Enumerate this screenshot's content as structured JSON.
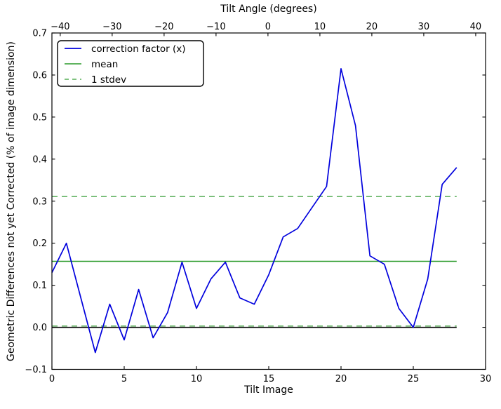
{
  "colors": {
    "series_blue": "#0000dd",
    "mean_green": "#2b9b2b",
    "stdev_green": "#55ad55",
    "zero_black": "#000000",
    "axes_black": "#000000",
    "background": "#ffffff"
  },
  "legend": {
    "position": "upper left",
    "entries": [
      {
        "label": "correction factor (x)",
        "color": "#0000dd",
        "style": "solid"
      },
      {
        "label": "mean",
        "color": "#2b9b2b",
        "style": "solid"
      },
      {
        "label": "1 stdev",
        "color": "#55ad55",
        "style": "dashed"
      }
    ]
  },
  "chart_data": {
    "type": "line",
    "title": "",
    "xlabel": "Tilt Image",
    "top_xlabel": "Tilt Angle (degrees)",
    "ylabel": "Geometric Differences not yet Corrected (% of image dimension)",
    "x": [
      0,
      1,
      2,
      3,
      4,
      5,
      6,
      7,
      8,
      9,
      10,
      11,
      12,
      13,
      14,
      15,
      16,
      17,
      18,
      19,
      20,
      21,
      22,
      23,
      24,
      25,
      26,
      27,
      28
    ],
    "series": [
      {
        "name": "correction factor (x)",
        "color": "#0000dd",
        "values": [
          0.13,
          0.2,
          0.07,
          -0.06,
          0.055,
          -0.03,
          0.09,
          -0.025,
          0.035,
          0.155,
          0.045,
          0.115,
          0.155,
          0.07,
          0.055,
          0.125,
          0.215,
          0.235,
          0.285,
          0.335,
          0.615,
          0.48,
          0.17,
          0.15,
          0.045,
          0.0,
          0.115,
          0.34,
          0.38
        ]
      }
    ],
    "reference_lines": {
      "mean": 0.157,
      "stdev": 0.154,
      "stdev_upper": 0.311,
      "stdev_lower": 0.003,
      "zero": 0.0,
      "x_span": [
        0,
        28
      ]
    },
    "xlim": [
      0,
      30
    ],
    "ylim": [
      -0.1,
      0.7
    ],
    "x_ticks": [
      0,
      5,
      10,
      15,
      20,
      25,
      30
    ],
    "y_ticks": [
      -0.1,
      0.0,
      0.1,
      0.2,
      0.3,
      0.4,
      0.5,
      0.6,
      0.7
    ],
    "top_axis_ticks": [
      -40,
      -30,
      -20,
      -10,
      0,
      10,
      20,
      30,
      40
    ],
    "top_axis_range": [
      -41.6,
      41.9
    ],
    "grid": false,
    "legend_position": "upper left"
  }
}
